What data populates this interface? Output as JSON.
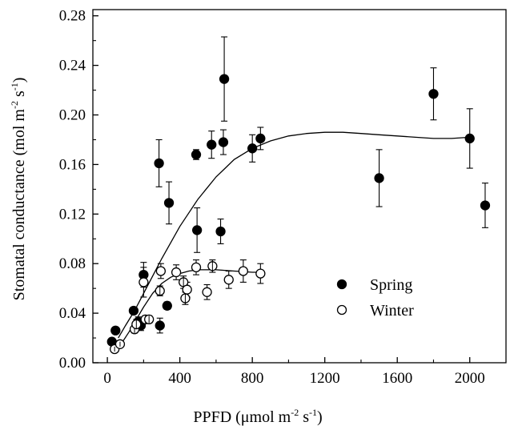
{
  "chart_data": {
    "type": "scatter",
    "xlabel": "PPFD (μmol m⁻² s⁻¹)",
    "xlabel_parts": {
      "main": "PPFD (μmol m",
      "sup1": "-2",
      "mid": " s",
      "sup2": "-1",
      "end": ")"
    },
    "ylabel": "Stomatal conductance (mol m⁻² s⁻¹)",
    "ylabel_parts": {
      "main": "Stomatal conductance (mol m",
      "sup1": "-2",
      "mid": " s",
      "sup2": "-1",
      "end": ")"
    },
    "xlim": [
      -80,
      2200
    ],
    "ylim": [
      0,
      0.285
    ],
    "x_ticks": [
      0,
      400,
      800,
      1200,
      1600,
      2000
    ],
    "x_tick_labels": [
      "0",
      "400",
      "800",
      "1200",
      "1600",
      "2000"
    ],
    "y_ticks": [
      0.0,
      0.04,
      0.08,
      0.12,
      0.16,
      0.2,
      0.24,
      0.28
    ],
    "y_tick_labels": [
      "0.00",
      "0.04",
      "0.08",
      "0.12",
      "0.16",
      "0.20",
      "0.24",
      "0.28"
    ],
    "grid": false,
    "legend_position": "center-right",
    "series": [
      {
        "name": "Spring",
        "marker": "filled-circle",
        "points": [
          {
            "x": 25,
            "y": 0.017,
            "err": 0.0
          },
          {
            "x": 45,
            "y": 0.026,
            "err": 0.0
          },
          {
            "x": 145,
            "y": 0.042,
            "err": 0.002
          },
          {
            "x": 170,
            "y": 0.033,
            "err": 0.004
          },
          {
            "x": 185,
            "y": 0.03,
            "err": 0.004
          },
          {
            "x": 200,
            "y": 0.071,
            "err": 0.01
          },
          {
            "x": 285,
            "y": 0.161,
            "err": 0.019
          },
          {
            "x": 290,
            "y": 0.03,
            "err": 0.006
          },
          {
            "x": 330,
            "y": 0.046,
            "err": 0.003
          },
          {
            "x": 340,
            "y": 0.129,
            "err": 0.017
          },
          {
            "x": 490,
            "y": 0.168,
            "err": 0.004
          },
          {
            "x": 495,
            "y": 0.107,
            "err": 0.018
          },
          {
            "x": 575,
            "y": 0.176,
            "err": 0.011
          },
          {
            "x": 625,
            "y": 0.106,
            "err": 0.01
          },
          {
            "x": 640,
            "y": 0.178,
            "err": 0.01
          },
          {
            "x": 645,
            "y": 0.229,
            "err": 0.034
          },
          {
            "x": 800,
            "y": 0.173,
            "err": 0.011
          },
          {
            "x": 845,
            "y": 0.181,
            "err": 0.009
          },
          {
            "x": 1500,
            "y": 0.149,
            "err": 0.023
          },
          {
            "x": 1800,
            "y": 0.217,
            "err": 0.021
          },
          {
            "x": 2000,
            "y": 0.181,
            "err": 0.024
          },
          {
            "x": 2085,
            "y": 0.127,
            "err": 0.018
          }
        ],
        "fit_curve": [
          [
            60,
            0.02
          ],
          [
            100,
            0.03
          ],
          [
            150,
            0.042
          ],
          [
            200,
            0.056
          ],
          [
            250,
            0.07
          ],
          [
            300,
            0.084
          ],
          [
            350,
            0.097
          ],
          [
            400,
            0.11
          ],
          [
            450,
            0.121
          ],
          [
            500,
            0.132
          ],
          [
            550,
            0.141
          ],
          [
            600,
            0.15
          ],
          [
            650,
            0.157
          ],
          [
            700,
            0.164
          ],
          [
            800,
            0.173
          ],
          [
            900,
            0.179
          ],
          [
            1000,
            0.183
          ],
          [
            1100,
            0.185
          ],
          [
            1200,
            0.186
          ],
          [
            1300,
            0.186
          ],
          [
            1400,
            0.185
          ],
          [
            1500,
            0.184
          ],
          [
            1600,
            0.183
          ],
          [
            1700,
            0.182
          ],
          [
            1800,
            0.181
          ],
          [
            1900,
            0.181
          ],
          [
            2000,
            0.182
          ]
        ]
      },
      {
        "name": "Winter",
        "marker": "open-circle",
        "points": [
          {
            "x": 40,
            "y": 0.011,
            "err": 0.002
          },
          {
            "x": 70,
            "y": 0.015,
            "err": 0.002
          },
          {
            "x": 150,
            "y": 0.027,
            "err": 0.003
          },
          {
            "x": 160,
            "y": 0.031,
            "err": 0.004
          },
          {
            "x": 200,
            "y": 0.065,
            "err": 0.012
          },
          {
            "x": 210,
            "y": 0.035,
            "err": 0.003
          },
          {
            "x": 230,
            "y": 0.035,
            "err": 0.003
          },
          {
            "x": 290,
            "y": 0.058,
            "err": 0.004
          },
          {
            "x": 295,
            "y": 0.074,
            "err": 0.006
          },
          {
            "x": 380,
            "y": 0.073,
            "err": 0.006
          },
          {
            "x": 420,
            "y": 0.065,
            "err": 0.005
          },
          {
            "x": 430,
            "y": 0.052,
            "err": 0.005
          },
          {
            "x": 440,
            "y": 0.059,
            "err": 0.006
          },
          {
            "x": 490,
            "y": 0.077,
            "err": 0.006
          },
          {
            "x": 550,
            "y": 0.057,
            "err": 0.006
          },
          {
            "x": 580,
            "y": 0.078,
            "err": 0.005
          },
          {
            "x": 670,
            "y": 0.067,
            "err": 0.007
          },
          {
            "x": 750,
            "y": 0.074,
            "err": 0.009
          },
          {
            "x": 845,
            "y": 0.072,
            "err": 0.008
          }
        ],
        "fit_curve": [
          [
            40,
            0.01
          ],
          [
            80,
            0.016
          ],
          [
            120,
            0.025
          ],
          [
            160,
            0.035
          ],
          [
            200,
            0.045
          ],
          [
            250,
            0.056
          ],
          [
            300,
            0.064
          ],
          [
            350,
            0.069
          ],
          [
            400,
            0.072
          ],
          [
            450,
            0.074
          ],
          [
            500,
            0.075
          ],
          [
            550,
            0.075
          ],
          [
            600,
            0.075
          ],
          [
            700,
            0.074
          ],
          [
            800,
            0.073
          ],
          [
            845,
            0.073
          ]
        ]
      }
    ]
  }
}
